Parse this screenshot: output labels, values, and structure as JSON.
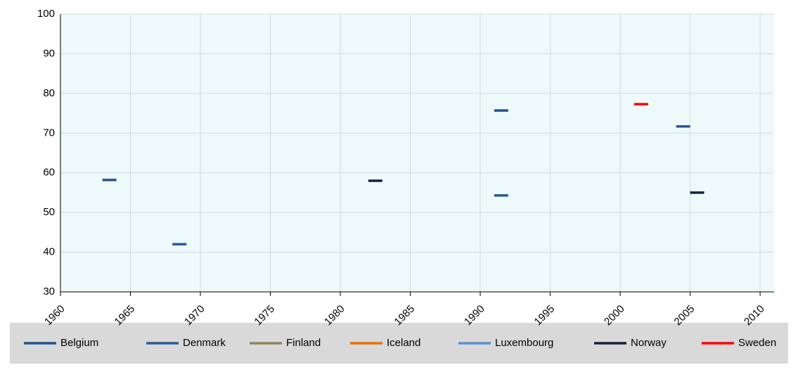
{
  "chart_data": {
    "type": "scatter",
    "series": [
      {
        "name": "Belgium",
        "color": "#24508c",
        "x": [
          1963.5,
          1991.5
        ],
        "values": [
          58.2,
          75.7
        ]
      },
      {
        "name": "Denmark",
        "color": "#2a5a98",
        "x": [
          1968.5,
          1991.5,
          2004.5
        ],
        "values": [
          42,
          54.3,
          71.7
        ]
      },
      {
        "name": "Finland",
        "color": "#8c875a",
        "x": [],
        "values": []
      },
      {
        "name": "Iceland",
        "color": "#e8720c",
        "x": [],
        "values": []
      },
      {
        "name": "Luxembourg",
        "color": "#5b8fd0",
        "x": [],
        "values": []
      },
      {
        "name": "Norway",
        "color": "#12233d",
        "x": [
          1982.5,
          2005.5
        ],
        "values": [
          58,
          55
        ]
      },
      {
        "name": "Sweden",
        "color": "#ff0000",
        "x": [
          2001.5
        ],
        "values": [
          77.3
        ]
      }
    ],
    "xlim": [
      1960,
      2011
    ],
    "xticks": [
      1960,
      1965,
      1970,
      1975,
      1980,
      1985,
      1990,
      1995,
      2000,
      2005,
      2010
    ],
    "ylim": [
      30,
      100
    ],
    "yticks": [
      30,
      40,
      50,
      60,
      70,
      80,
      90,
      100
    ],
    "grid": true,
    "legend": "bottom"
  }
}
